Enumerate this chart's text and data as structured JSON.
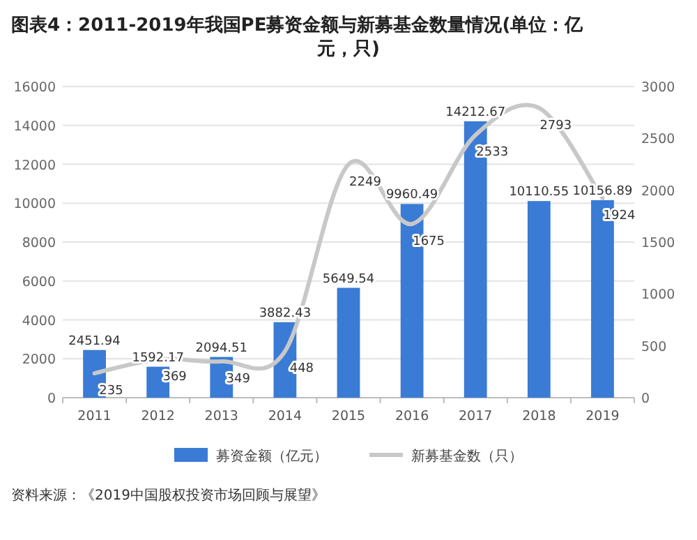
{
  "chart_data": {
    "type": "bar",
    "title": "图表4：2011-2019年我国PE募资金额与新募基金数量情况(单位：亿元，只)",
    "categories": [
      "2011",
      "2012",
      "2013",
      "2014",
      "2015",
      "2016",
      "2017",
      "2018",
      "2019"
    ],
    "series": [
      {
        "name": "募资金额（亿元）",
        "color": "#3a7bd5",
        "values": [
          2451.94,
          1592.17,
          2094.51,
          3882.43,
          5649.54,
          9960.49,
          14212.67,
          10110.55,
          10156.89
        ]
      },
      {
        "name": "新募基金数（只）",
        "type": "line",
        "axis": "y2",
        "color": "#c8c8c8",
        "values": [
          235,
          369,
          349,
          448,
          2249,
          1675,
          2533,
          2793,
          1924
        ]
      }
    ],
    "ylim": [
      0,
      16000
    ],
    "yticks": [
      0,
      2000,
      4000,
      6000,
      8000,
      10000,
      12000,
      14000,
      16000
    ],
    "y2lim": [
      0,
      3000
    ],
    "y2ticks": [
      0,
      500,
      1000,
      1500,
      2000,
      2500,
      3000
    ],
    "grid": "y",
    "legend": "bottom",
    "data_labels": true,
    "marker": "none",
    "annotations": [
      "资料来源：《2019中国股权投资市场回顾与展望》"
    ]
  }
}
